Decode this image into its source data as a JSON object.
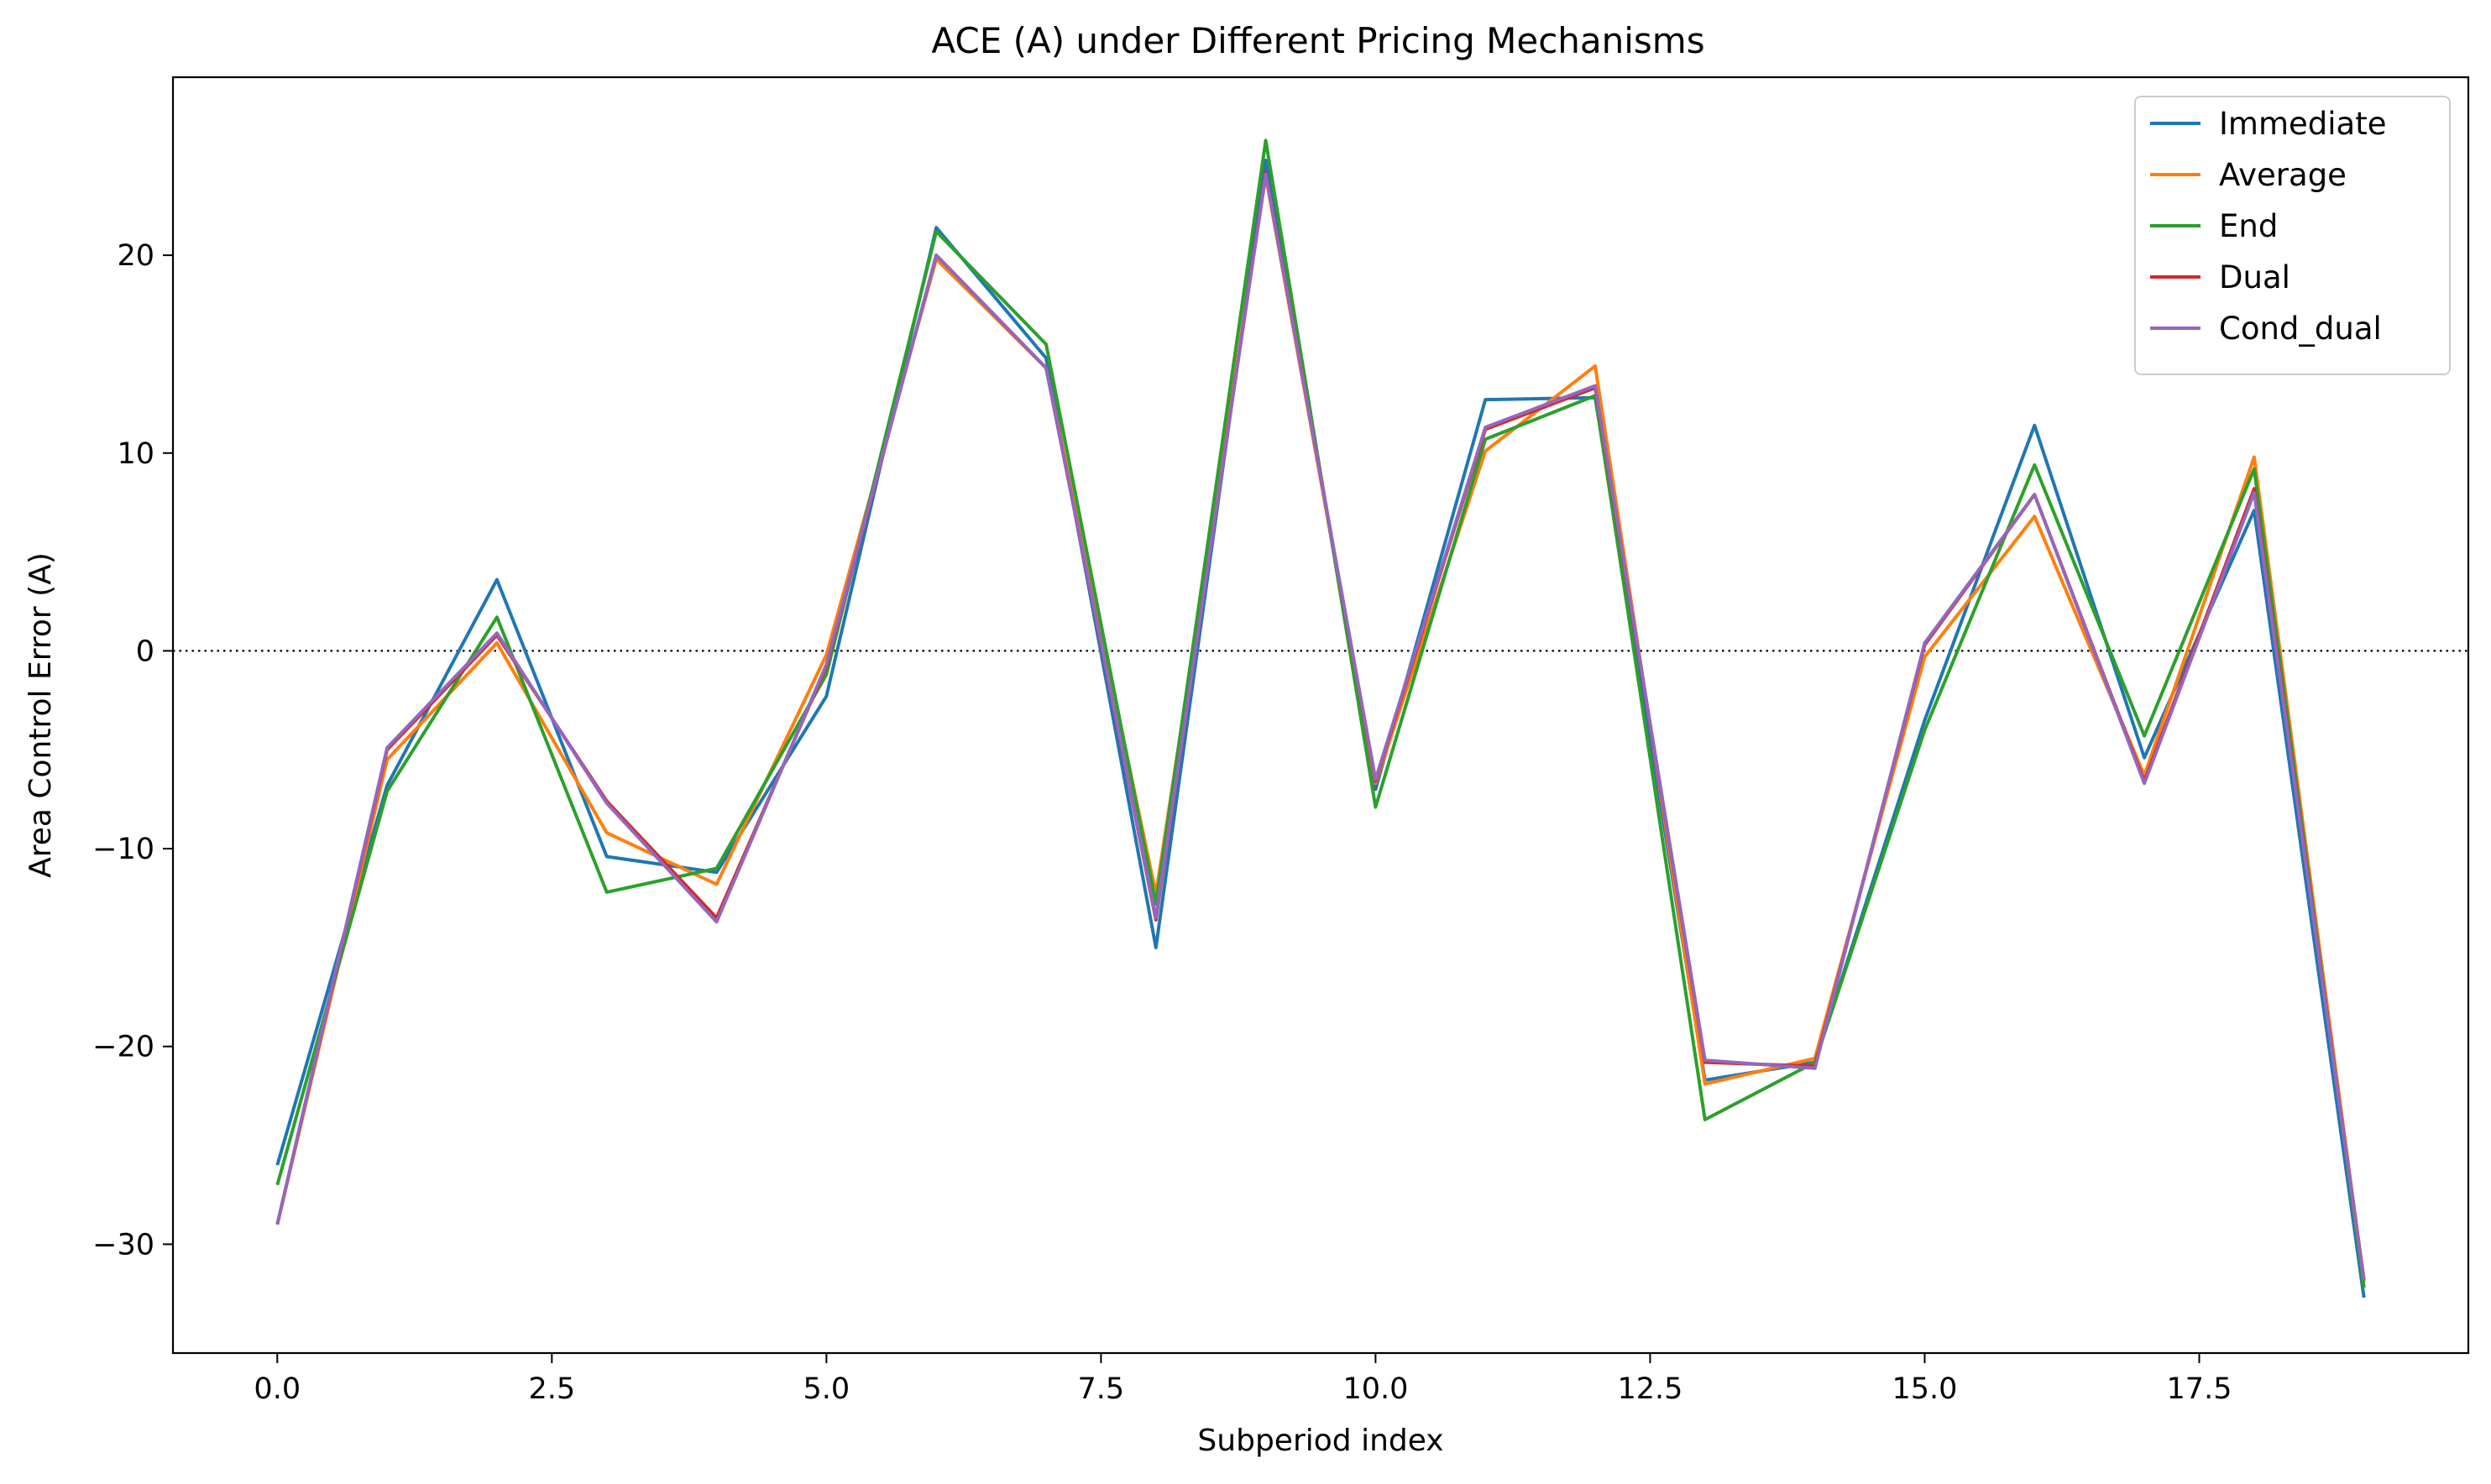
{
  "chart_data": {
    "type": "line",
    "title": "ACE (A) under Different Pricing Mechanisms",
    "xlabel": "Subperiod index",
    "ylabel": "Area Control Error (A)",
    "xlim": [
      -0.95,
      19.95
    ],
    "ylim": [
      -35.5,
      29
    ],
    "xticks": [
      0.0,
      2.5,
      5.0,
      7.5,
      10.0,
      12.5,
      15.0,
      17.5
    ],
    "xtick_labels": [
      "0.0",
      "2.5",
      "5.0",
      "7.5",
      "10.0",
      "12.5",
      "15.0",
      "17.5"
    ],
    "yticks": [
      -30,
      -20,
      -10,
      0,
      10,
      20
    ],
    "ytick_labels": [
      "−30",
      "−20",
      "−10",
      "0",
      "10",
      "20"
    ],
    "zero_line": "dotted",
    "grid": false,
    "legend_position": "top-right",
    "x": [
      0,
      1,
      2,
      3,
      4,
      5,
      6,
      7,
      8,
      9,
      10,
      11,
      12,
      13,
      14,
      15,
      16,
      17,
      18,
      19
    ],
    "series": [
      {
        "name": "Immediate",
        "color": "#1f77b4",
        "values": [
          -26.0,
          -6.8,
          3.6,
          -10.4,
          -11.2,
          -2.3,
          21.4,
          14.8,
          -15.0,
          24.8,
          -7.0,
          12.7,
          12.8,
          -21.7,
          -20.8,
          -3.5,
          11.4,
          -5.4,
          7.1,
          -32.7
        ]
      },
      {
        "name": "Average",
        "color": "#ff7f0e",
        "values": [
          -29.0,
          -5.5,
          0.4,
          -9.2,
          -11.8,
          -0.2,
          19.8,
          14.3,
          -12.3,
          24.0,
          -6.7,
          10.1,
          14.4,
          -21.9,
          -20.6,
          -0.3,
          6.8,
          -6.3,
          9.8,
          -31.9
        ]
      },
      {
        "name": "End",
        "color": "#2ca02c",
        "values": [
          -27.0,
          -7.1,
          1.7,
          -12.2,
          -11.0,
          -1.2,
          21.2,
          15.5,
          -12.8,
          25.8,
          -7.9,
          10.7,
          12.9,
          -23.7,
          -20.8,
          -4.0,
          9.4,
          -4.3,
          9.2,
          -32.2
        ]
      },
      {
        "name": "Dual",
        "color": "#d62728",
        "values": [
          -29.0,
          -5.0,
          0.8,
          -7.6,
          -13.5,
          -0.8,
          20.0,
          14.3,
          -13.6,
          24.2,
          -6.6,
          11.2,
          13.3,
          -20.8,
          -21.0,
          0.3,
          7.9,
          -6.6,
          8.2,
          -31.8
        ]
      },
      {
        "name": "Cond_dual",
        "color": "#9467bd",
        "values": [
          -29.0,
          -4.9,
          0.9,
          -7.7,
          -13.7,
          -0.7,
          20.0,
          14.3,
          -13.5,
          24.1,
          -6.5,
          11.3,
          13.4,
          -20.7,
          -21.1,
          0.4,
          7.9,
          -6.7,
          8.0,
          -31.8
        ]
      }
    ]
  }
}
